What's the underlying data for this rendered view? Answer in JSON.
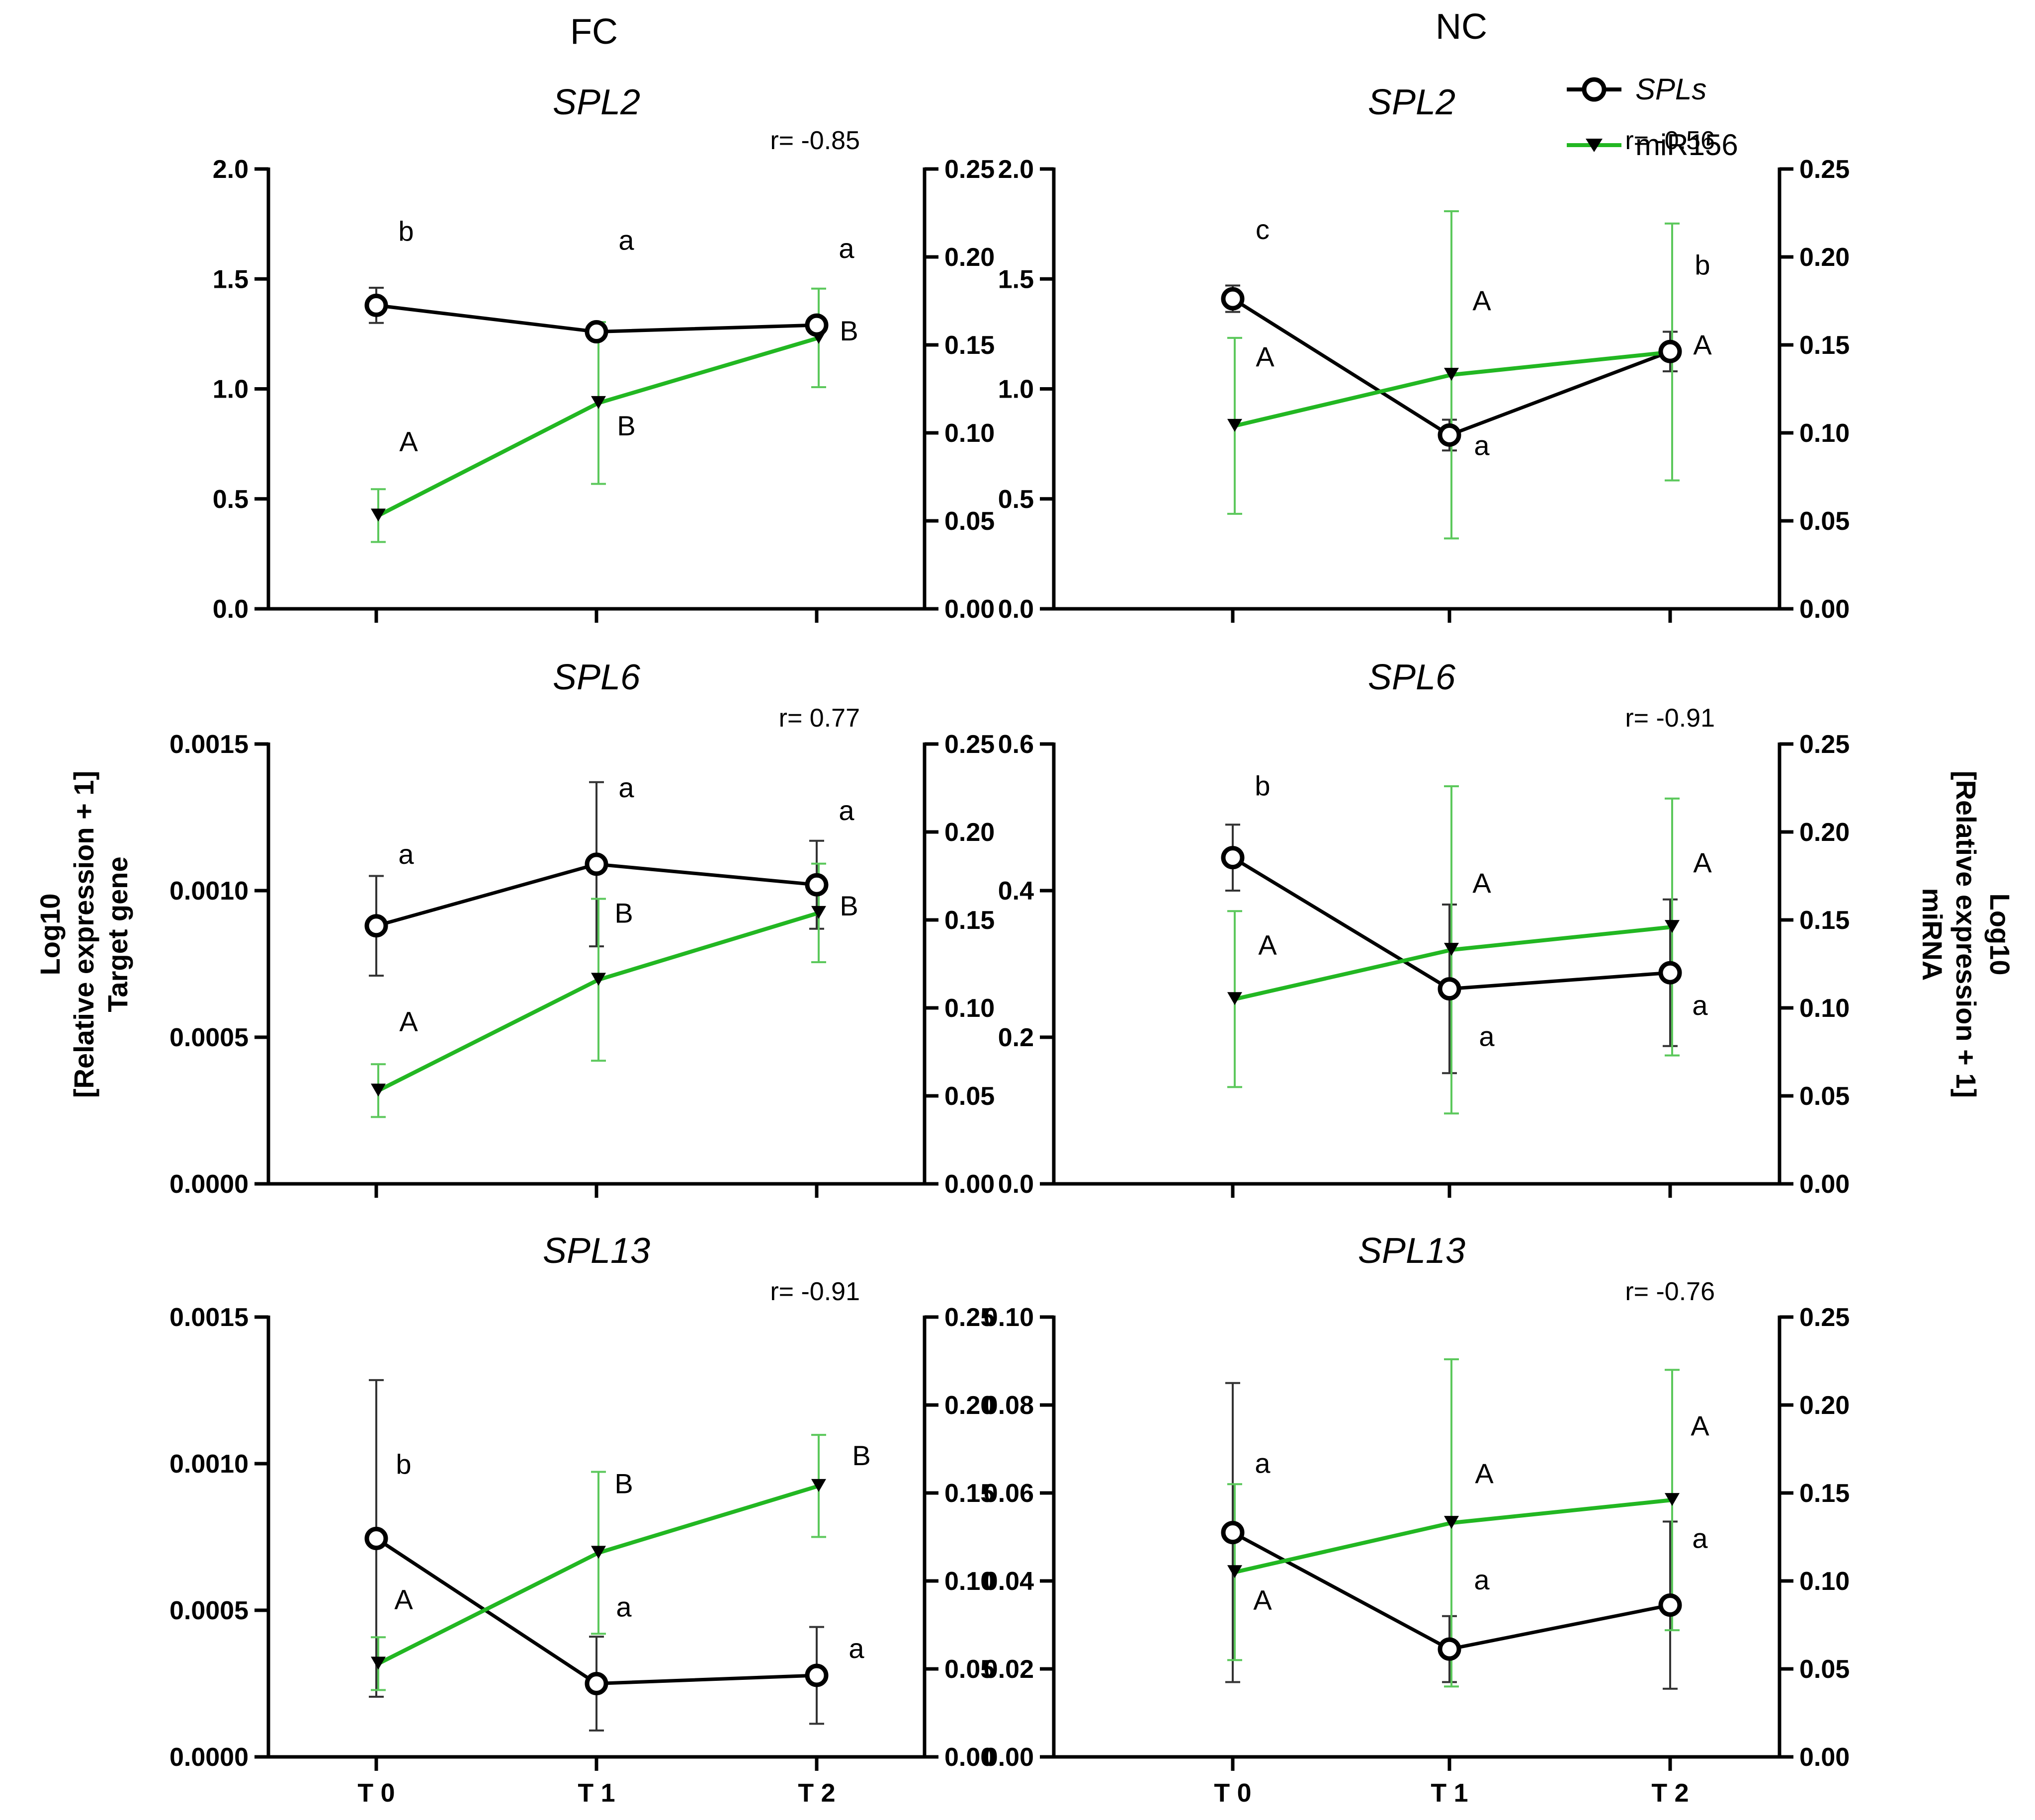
{
  "figure": {
    "columns": [
      "FC",
      "NC"
    ],
    "left_ylabel": [
      "Log10",
      "[Relative expression + 1]",
      "Target gene"
    ],
    "right_ylabel": [
      "Log10",
      "[Relative expression + 1]",
      "miRNA"
    ],
    "legend": [
      {
        "label": "SPLs",
        "italic": true,
        "color": "#000000",
        "marker": "open-circle"
      },
      {
        "label": "miR156",
        "italic": false,
        "color": "#22b722",
        "marker": "down-triangle"
      }
    ]
  },
  "chart_data": [
    {
      "type": "line",
      "title": "SPL2",
      "column": "FC",
      "row": 0,
      "r": "r= -0.85",
      "categories": [
        "T 0",
        "T 1",
        "T 2"
      ],
      "left_ylim": [
        0,
        2.0
      ],
      "left_ticks": [
        "0.0",
        "0.5",
        "1.0",
        "1.5",
        "2.0"
      ],
      "right_ylim": [
        0,
        0.25
      ],
      "right_ticks": [
        "0.00",
        "0.05",
        "0.10",
        "0.15",
        "0.20",
        "0.25"
      ],
      "series": [
        {
          "name": "SPLs",
          "axis": "left",
          "values": [
            1.38,
            1.26,
            1.29
          ],
          "err": [
            0.08,
            0.02,
            0.02
          ],
          "letters": [
            "b",
            "a",
            "a"
          ]
        },
        {
          "name": "miR156",
          "axis": "right",
          "values": [
            0.053,
            0.117,
            0.154
          ],
          "err": [
            0.015,
            0.046,
            0.028
          ],
          "letters": [
            "A",
            "B",
            "B"
          ]
        }
      ]
    },
    {
      "type": "line",
      "title": "SPL2",
      "column": "NC",
      "row": 0,
      "r": "r= -0.56",
      "categories": [
        "T 0",
        "T 1",
        "T 2"
      ],
      "left_ylim": [
        0,
        2.0
      ],
      "left_ticks": [
        "0.0",
        "0.5",
        "1.0",
        "1.5",
        "2.0"
      ],
      "right_ylim": [
        0,
        0.25
      ],
      "right_ticks": [
        "0.00",
        "0.05",
        "0.10",
        "0.15",
        "0.20",
        "0.25"
      ],
      "series": [
        {
          "name": "SPLs",
          "axis": "left",
          "values": [
            1.41,
            0.79,
            1.17
          ],
          "err": [
            0.06,
            0.07,
            0.09
          ],
          "letters": [
            "c",
            "a",
            "b"
          ]
        },
        {
          "name": "miR156",
          "axis": "right",
          "values": [
            0.104,
            0.133,
            0.146
          ],
          "err": [
            0.05,
            0.093,
            0.073
          ],
          "letters": [
            "A",
            "A",
            "A"
          ]
        }
      ]
    },
    {
      "type": "line",
      "title": "SPL6",
      "column": "FC",
      "row": 1,
      "r": "r= 0.77",
      "categories": [
        "T 0",
        "T 1",
        "T 2"
      ],
      "left_ylim": [
        0,
        0.0015
      ],
      "left_ticks": [
        "0.0000",
        "0.0005",
        "0.0010",
        "0.0015"
      ],
      "right_ylim": [
        0,
        0.25
      ],
      "right_ticks": [
        "0.00",
        "0.05",
        "0.10",
        "0.15",
        "0.20",
        "0.25"
      ],
      "series": [
        {
          "name": "SPLs",
          "axis": "left",
          "values": [
            0.00088,
            0.00109,
            0.00102
          ],
          "err": [
            0.00017,
            0.00028,
            0.00015
          ],
          "letters": [
            "a",
            "a",
            "a"
          ]
        },
        {
          "name": "miR156",
          "axis": "right",
          "values": [
            0.053,
            0.116,
            0.154
          ],
          "err": [
            0.015,
            0.046,
            0.028
          ],
          "letters": [
            "A",
            "B",
            "B"
          ]
        }
      ]
    },
    {
      "type": "line",
      "title": "SPL6",
      "column": "NC",
      "row": 1,
      "r": "r= -0.91",
      "categories": [
        "T 0",
        "T 1",
        "T 2"
      ],
      "left_ylim": [
        0,
        0.6
      ],
      "left_ticks": [
        "0.0",
        "0.2",
        "0.4",
        "0.6"
      ],
      "right_ylim": [
        0,
        0.25
      ],
      "right_ticks": [
        "0.00",
        "0.05",
        "0.10",
        "0.15",
        "0.20",
        "0.25"
      ],
      "series": [
        {
          "name": "SPLs",
          "axis": "left",
          "values": [
            0.445,
            0.266,
            0.288
          ],
          "err": [
            0.045,
            0.115,
            0.1
          ],
          "letters": [
            "b",
            "a",
            "a"
          ]
        },
        {
          "name": "miR156",
          "axis": "right",
          "values": [
            0.105,
            0.133,
            0.146
          ],
          "err": [
            0.05,
            0.093,
            0.073
          ],
          "letters": [
            "A",
            "A",
            "A"
          ]
        }
      ]
    },
    {
      "type": "line",
      "title": "SPL13",
      "column": "FC",
      "row": 2,
      "r": "r= -0.91",
      "categories": [
        "T 0",
        "T 1",
        "T 2"
      ],
      "left_ylim": [
        0,
        0.0015
      ],
      "left_ticks": [
        "0.0000",
        "0.0005",
        "0.0010",
        "0.0015"
      ],
      "right_ylim": [
        0,
        0.25
      ],
      "right_ticks": [
        "0.00",
        "0.05",
        "0.10",
        "0.15",
        "0.20",
        "0.25"
      ],
      "series": [
        {
          "name": "SPLs",
          "axis": "left",
          "values": [
            0.000745,
            0.00025,
            0.000278
          ],
          "err": [
            0.00054,
            0.00016,
            0.000165
          ],
          "letters": [
            "b",
            "a",
            "a"
          ]
        },
        {
          "name": "miR156",
          "axis": "right",
          "values": [
            0.053,
            0.116,
            0.154
          ],
          "err": [
            0.015,
            0.046,
            0.029
          ],
          "letters": [
            "A",
            "B",
            "B"
          ]
        }
      ]
    },
    {
      "type": "line",
      "title": "SPL13",
      "column": "NC",
      "row": 2,
      "r": "r= -0.76",
      "categories": [
        "T 0",
        "T 1",
        "T 2"
      ],
      "left_ylim": [
        0,
        0.1
      ],
      "left_ticks": [
        "0.00",
        "0.02",
        "0.04",
        "0.06",
        "0.08",
        "0.10"
      ],
      "right_ylim": [
        0,
        0.25
      ],
      "right_ticks": [
        "0.00",
        "0.05",
        "0.10",
        "0.15",
        "0.20",
        "0.25"
      ],
      "series": [
        {
          "name": "SPLs",
          "axis": "left",
          "values": [
            0.051,
            0.0245,
            0.0345
          ],
          "err": [
            0.034,
            0.0075,
            0.019
          ],
          "letters": [
            "a",
            "a",
            "a"
          ]
        },
        {
          "name": "miR156",
          "axis": "right",
          "values": [
            0.105,
            0.133,
            0.146
          ],
          "err": [
            0.05,
            0.093,
            0.074
          ],
          "letters": [
            "A",
            "A",
            "A"
          ]
        }
      ]
    }
  ]
}
